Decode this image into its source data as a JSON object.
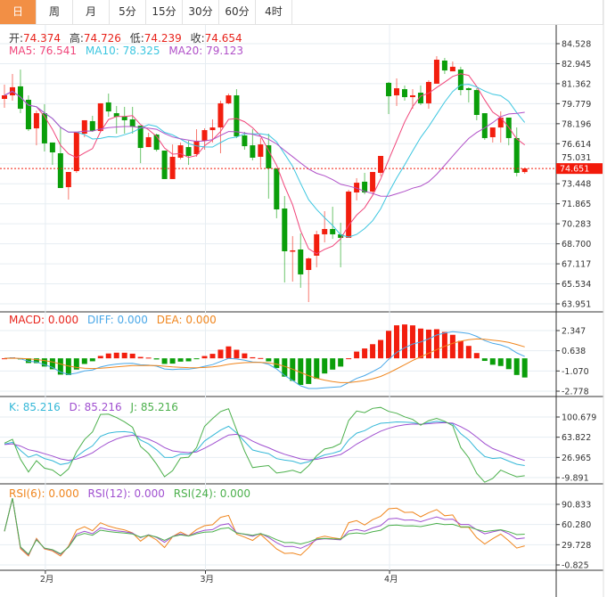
{
  "tabs": [
    "日",
    "周",
    "月",
    "5分",
    "15分",
    "30分",
    "60分",
    "4时"
  ],
  "active_tab": 0,
  "ohlc_legend": {
    "open_label": "开:",
    "open": "74.374",
    "high_label": "高:",
    "high": "74.726",
    "low_label": "低:",
    "low": "74.239",
    "close_label": "收:",
    "close": "74.654"
  },
  "ma_legend": {
    "ma5": "MA5: 76.541",
    "ma10": "MA10: 78.325",
    "ma20": "MA20: 79.123"
  },
  "macd_legend": {
    "macd": "MACD: 0.000",
    "diff": "DIFF: 0.000",
    "dea": "DEA: 0.000"
  },
  "kdj_legend": {
    "k": "K: 85.216",
    "d": "D: 85.216",
    "j": "J: 85.216"
  },
  "rsi_legend": {
    "rsi6": "RSI(6): 0.000",
    "rsi12": "RSI(12): 0.000",
    "rsi24": "RSI(24): 0.000"
  },
  "current_price": "74.651",
  "colors": {
    "up": "#f21e0e",
    "down": "#0a9e0a",
    "ma5": "#f0457a",
    "ma10": "#3cc6e0",
    "ma20": "#b050c8",
    "diff": "#4aa8e8",
    "dea": "#f0861e",
    "k": "#35b8d8",
    "d": "#a050d0",
    "j": "#4cb04c",
    "rsi6": "#f0861e",
    "rsi12": "#a050d0",
    "rsi24": "#4cb04c",
    "accent": "#f28f45"
  },
  "axes": {
    "price_ticks": [
      "84.528",
      "82.945",
      "81.362",
      "79.779",
      "78.196",
      "76.614",
      "75.031",
      "73.448",
      "71.865",
      "70.283",
      "68.700",
      "67.117",
      "65.534",
      "63.951"
    ],
    "macd_ticks": [
      "2.347",
      "0.638",
      "-1.070",
      "-2.778"
    ],
    "kdj_ticks": [
      "100.679",
      "63.822",
      "26.965",
      "-9.891"
    ],
    "rsi_ticks": [
      "90.833",
      "60.280",
      "29.728",
      "-0.825"
    ],
    "date_labels": [
      {
        "label": "2月",
        "index": 5
      },
      {
        "label": "3月",
        "index": 25
      },
      {
        "label": "4月",
        "index": 48
      }
    ]
  },
  "chart_data": {
    "type": "candlestick",
    "fields": [
      "open",
      "high",
      "low",
      "close"
    ],
    "ohlc": [
      [
        80.16,
        81.29,
        79.45,
        80.44
      ],
      [
        80.44,
        82.13,
        80.02,
        81.08
      ],
      [
        81.15,
        82.48,
        79.03,
        79.38
      ],
      [
        80.09,
        80.44,
        77.62,
        77.76
      ],
      [
        77.83,
        79.24,
        76.49,
        79.03
      ],
      [
        79.03,
        79.74,
        76.0,
        76.64
      ],
      [
        76.71,
        76.71,
        74.94,
        75.93
      ],
      [
        75.86,
        77.97,
        73.11,
        73.11
      ],
      [
        73.18,
        74.38,
        72.2,
        74.38
      ],
      [
        74.45,
        77.55,
        74.31,
        77.55
      ],
      [
        77.41,
        78.47,
        77.13,
        78.47
      ],
      [
        78.4,
        78.82,
        77.55,
        77.62
      ],
      [
        77.62,
        79.81,
        77.55,
        79.81
      ],
      [
        79.88,
        80.58,
        78.75,
        79.17
      ],
      [
        79.03,
        79.6,
        77.41,
        78.75
      ],
      [
        78.75,
        79.53,
        77.41,
        78.47
      ],
      [
        78.54,
        79.53,
        77.41,
        77.97
      ],
      [
        78.04,
        78.04,
        75.08,
        76.28
      ],
      [
        76.35,
        77.48,
        76.35,
        77.13
      ],
      [
        77.34,
        77.41,
        76.0,
        76.14
      ],
      [
        76.07,
        76.07,
        73.82,
        73.82
      ],
      [
        73.82,
        76.56,
        73.82,
        75.58
      ],
      [
        75.51,
        76.71,
        75.37,
        76.49
      ],
      [
        76.35,
        76.85,
        74.94,
        75.65
      ],
      [
        75.79,
        77.76,
        75.58,
        76.85
      ],
      [
        76.85,
        77.83,
        76.14,
        77.69
      ],
      [
        77.69,
        78.54,
        76.71,
        77.9
      ],
      [
        77.9,
        80.02,
        75.86,
        79.81
      ],
      [
        79.81,
        80.58,
        79.74,
        80.44
      ],
      [
        80.44,
        80.93,
        77.06,
        77.2
      ],
      [
        77.27,
        77.55,
        76.14,
        76.42
      ],
      [
        76.49,
        77.76,
        75.3,
        75.51
      ],
      [
        75.58,
        77.06,
        74.73,
        76.56
      ],
      [
        76.49,
        77.41,
        72.27,
        74.66
      ],
      [
        74.66,
        74.66,
        70.72,
        71.42
      ],
      [
        71.49,
        72.48,
        65.64,
        68.11
      ],
      [
        68.11,
        69.31,
        65.71,
        68.18
      ],
      [
        68.25,
        69.52,
        65.22,
        66.28
      ],
      [
        66.63,
        67.62,
        64.09,
        67.54
      ],
      [
        67.76,
        69.73,
        66.84,
        69.45
      ],
      [
        69.45,
        71.28,
        68.81,
        69.87
      ],
      [
        69.87,
        71.63,
        69.09,
        69.45
      ],
      [
        69.45,
        70.36,
        66.84,
        69.17
      ],
      [
        69.17,
        72.97,
        69.17,
        72.83
      ],
      [
        72.76,
        73.89,
        72.13,
        73.53
      ],
      [
        73.61,
        74.31,
        72.62,
        72.76
      ],
      [
        72.83,
        74.38,
        72.62,
        74.38
      ],
      [
        74.31,
        75.65,
        74.03,
        75.65
      ],
      [
        81.43,
        81.5,
        78.96,
        80.37
      ],
      [
        80.44,
        81.78,
        79.6,
        81.0
      ],
      [
        80.93,
        81.22,
        80.02,
        80.3
      ],
      [
        80.3,
        80.93,
        79.38,
        80.44
      ],
      [
        80.65,
        81.22,
        79.67,
        79.81
      ],
      [
        79.81,
        81.64,
        79.38,
        81.5
      ],
      [
        81.36,
        83.54,
        81.36,
        83.26
      ],
      [
        83.19,
        83.4,
        82.13,
        82.41
      ],
      [
        82.34,
        83.12,
        82.34,
        82.7
      ],
      [
        82.48,
        82.7,
        80.44,
        80.86
      ],
      [
        81.0,
        81.08,
        79.88,
        80.86
      ],
      [
        80.86,
        81.0,
        78.47,
        78.89
      ],
      [
        79.03,
        79.03,
        76.92,
        77.06
      ],
      [
        77.13,
        77.9,
        76.71,
        77.9
      ],
      [
        77.9,
        79.17,
        76.71,
        78.68
      ],
      [
        78.68,
        78.68,
        76.49,
        77.06
      ],
      [
        77.06,
        77.9,
        74.03,
        74.31
      ],
      [
        74.374,
        74.726,
        74.239,
        74.654
      ]
    ]
  }
}
